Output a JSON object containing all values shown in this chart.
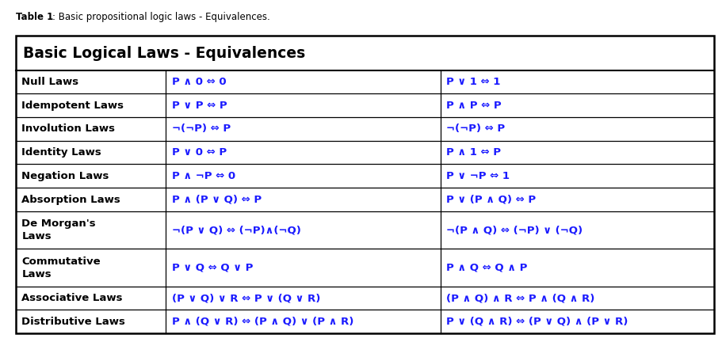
{
  "caption_bold": "Table 1",
  "caption_rest": ": Basic propositional logic laws - Equivalences.",
  "header": "Basic Logical Laws - Equivalences",
  "bg_color": "#ffffff",
  "border_color": "#000000",
  "col2_color": "#1a1aff",
  "col3_color": "#1a1aff",
  "rows": [
    {
      "law": "Null Laws",
      "col2": "P ∧ 0 ⇔ 0",
      "col3": "P ∨ 1 ⇔ 1",
      "double": false
    },
    {
      "law": "Idempotent Laws",
      "col2": "P ∨ P ⇔ P",
      "col3": "P ∧ P ⇔ P",
      "double": false
    },
    {
      "law": "Involution Laws",
      "col2": "¬(¬P) ⇔ P",
      "col3": "¬(¬P) ⇔ P",
      "double": false
    },
    {
      "law": "Identity Laws",
      "col2": "P ∨ 0 ⇔ P",
      "col3": "P ∧ 1 ⇔ P",
      "double": false
    },
    {
      "law": "Negation Laws",
      "col2": "P ∧ ¬P ⇔ 0",
      "col3": "P ∨ ¬P ⇔ 1",
      "double": false
    },
    {
      "law": "Absorption Laws",
      "col2": "P ∧ (P ∨ Q) ⇔ P",
      "col3": "P ∨ (P ∧ Q) ⇔ P",
      "double": false
    },
    {
      "law": "De Morgan's\nLaws",
      "col2": "¬(P ∨ Q) ⇔ (¬P)∧(¬Q)",
      "col3": "¬(P ∧ Q) ⇔ (¬P) ∨ (¬Q)",
      "double": true
    },
    {
      "law": "Commutative\nLaws",
      "col2": "P ∨ Q ⇔ Q ∨ P",
      "col3": "P ∧ Q ⇔ Q ∧ P",
      "double": true
    },
    {
      "law": "Associative Laws",
      "col2": "(P ∨ Q) ∨ R ⇔ P ∨ (Q ∨ R)",
      "col3": "(P ∧ Q) ∧ R ⇔ P ∧ (Q ∧ R)",
      "double": false
    },
    {
      "law": "Distributive Laws",
      "col2": "P ∧ (Q ∨ R) ⇔ (P ∧ Q) ∨ (P ∧ R)",
      "col3": "P ∨ (Q ∧ R) ⇔ (P ∨ Q) ∧ (P ∨ R)",
      "double": false
    }
  ]
}
